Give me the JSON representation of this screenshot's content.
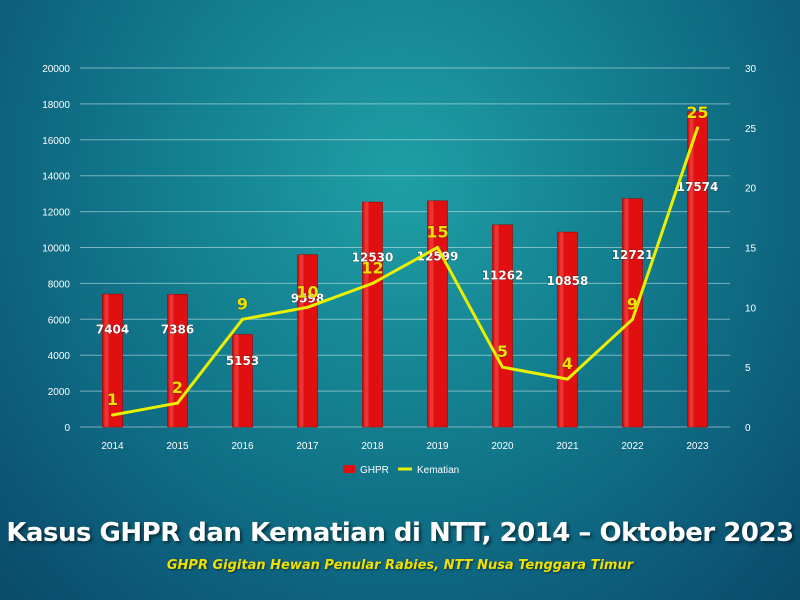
{
  "chart_data": {
    "type": "bar",
    "categories": [
      "2014",
      "2015",
      "2016",
      "2017",
      "2018",
      "2019",
      "2020",
      "2021",
      "2022",
      "2023"
    ],
    "series": [
      {
        "name": "GHPR",
        "type": "bar",
        "axis": "left",
        "values": [
          7404,
          7386,
          5153,
          9598,
          12530,
          12599,
          11262,
          10858,
          12721,
          17574
        ]
      },
      {
        "name": "Kematian",
        "type": "line",
        "axis": "right",
        "values": [
          1,
          2,
          9,
          10,
          12,
          15,
          5,
          4,
          9,
          25
        ]
      }
    ],
    "y_left": {
      "min": 0,
      "max": 20000,
      "ticks": [
        0,
        2000,
        4000,
        6000,
        8000,
        10000,
        12000,
        14000,
        16000,
        18000,
        20000
      ]
    },
    "y_right": {
      "min": 0,
      "max": 30,
      "ticks": [
        0,
        5,
        10,
        15,
        20,
        25,
        30
      ]
    },
    "grid": true,
    "legend": "bottom-center",
    "colors": {
      "bar": "#e01010",
      "line": "#e8f000",
      "bar_label": "#ffffff",
      "line_label": "#f2e000"
    }
  },
  "title": {
    "part1": "Kasus GHPR dan Kematian di NTT, 2014 – ",
    "part2": "Oktober 2023"
  },
  "subtitle": "GHPR Gigitan Hewan Penular Rabies, NTT Nusa Tenggara Timur"
}
